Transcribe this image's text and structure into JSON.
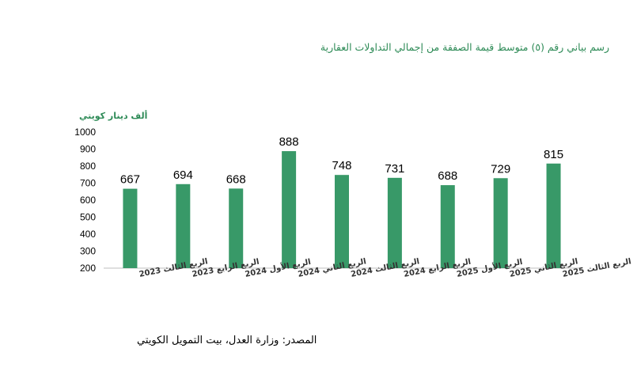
{
  "colors": {
    "bar": "#389968",
    "title": "#2e8b57",
    "axis": "#bfbfbf",
    "text": "#000000"
  },
  "chart_data": {
    "type": "bar",
    "title": "رسم بياني رقم (٥) متوسط قيمة الصفقة من إجمالي التداولات العقارية",
    "ylabel": "ألف دينار كويتي",
    "xlabel": "",
    "ylim": [
      200,
      1000
    ],
    "yticks": [
      200,
      300,
      400,
      500,
      600,
      700,
      800,
      900,
      1000
    ],
    "grid": false,
    "categories": [
      "الربع الثالث 2023",
      "الربع الرابع 2023",
      "الربع الأول 2024",
      "الربع الثاني 2024",
      "الربع الثالث 2024",
      "الربع الرابع 2024",
      "الربع الأول 2025",
      "الربع الثاني 2025",
      "الربع الثالث 2025"
    ],
    "values": [
      667,
      694,
      668,
      888,
      748,
      731,
      688,
      729,
      815
    ]
  },
  "source": "المصدر: وزارة العدل، بيت التمويل الكويتي"
}
